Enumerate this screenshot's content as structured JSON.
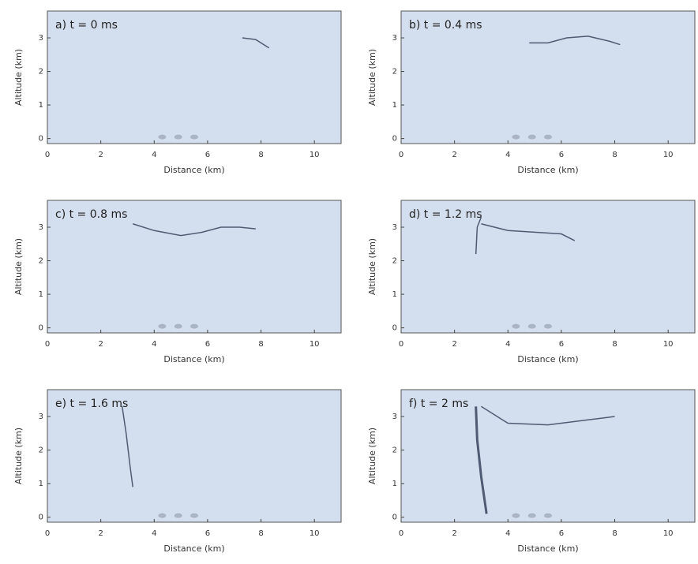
{
  "chart_data": [
    {
      "type": "image",
      "title": "a) t = 0 ms",
      "xlabel": "Distance (km)",
      "ylabel": "Altitude (km)",
      "xlim": [
        0,
        11
      ],
      "ylim": [
        -0.15,
        3.8
      ],
      "xticks": [
        0,
        2,
        4,
        6,
        8,
        10
      ],
      "yticks": [
        0,
        1,
        2,
        3
      ]
    },
    {
      "type": "image",
      "title": "b) t = 0.4 ms",
      "xlabel": "Distance (km)",
      "ylabel": "Altitude (km)",
      "xlim": [
        0,
        11
      ],
      "ylim": [
        -0.15,
        3.8
      ],
      "xticks": [
        0,
        2,
        4,
        6,
        8,
        10
      ],
      "yticks": [
        0,
        1,
        2,
        3
      ]
    },
    {
      "type": "image",
      "title": "c) t = 0.8 ms",
      "xlabel": "Distance (km)",
      "ylabel": "Altitude (km)",
      "xlim": [
        0,
        11
      ],
      "ylim": [
        -0.15,
        3.8
      ],
      "xticks": [
        0,
        2,
        4,
        6,
        8,
        10
      ],
      "yticks": [
        0,
        1,
        2,
        3
      ]
    },
    {
      "type": "image",
      "title": "d) t = 1.2 ms",
      "xlabel": "Distance (km)",
      "ylabel": "Altitude (km)",
      "xlim": [
        0,
        11
      ],
      "ylim": [
        -0.15,
        3.8
      ],
      "xticks": [
        0,
        2,
        4,
        6,
        8,
        10
      ],
      "yticks": [
        0,
        1,
        2,
        3
      ]
    },
    {
      "type": "image",
      "title": "e) t = 1.6 ms",
      "xlabel": "Distance (km)",
      "ylabel": "Altitude (km)",
      "xlim": [
        0,
        11
      ],
      "ylim": [
        -0.15,
        3.8
      ],
      "xticks": [
        0,
        2,
        4,
        6,
        8,
        10
      ],
      "yticks": [
        0,
        1,
        2,
        3
      ]
    },
    {
      "type": "image",
      "title": "f) t = 2 ms",
      "xlabel": "Distance (km)",
      "ylabel": "Altitude (km)",
      "xlim": [
        0,
        11
      ],
      "ylim": [
        -0.15,
        3.8
      ],
      "xticks": [
        0,
        2,
        4,
        6,
        8,
        10
      ],
      "yticks": [
        0,
        1,
        2,
        3
      ]
    }
  ]
}
